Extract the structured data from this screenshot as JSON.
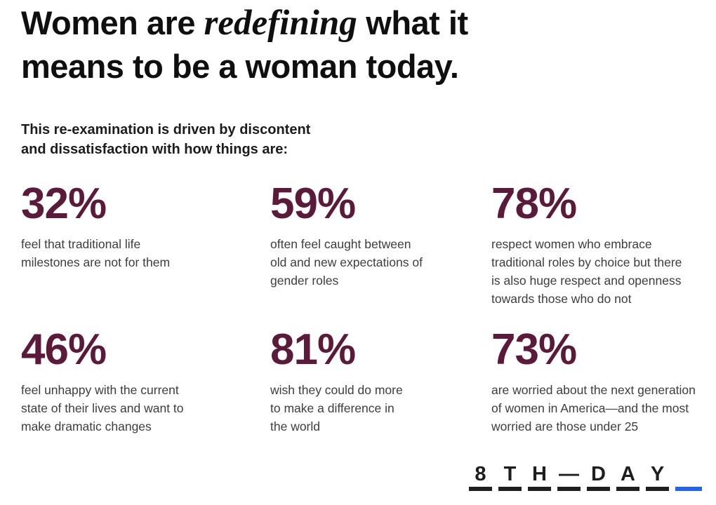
{
  "header": {
    "title": {
      "line1_pre": "Women are ",
      "line1_italic": "redefining",
      "line1_post": " what it",
      "line2": "means to be a woman today."
    },
    "subtitle": "This re-examination is driven by discontent\nand dissatisfaction with how things are:"
  },
  "stats": [
    {
      "value": "32%",
      "description": "feel that traditional life\nmilestones are not for them"
    },
    {
      "value": "59%",
      "description": "often feel caught between\nold and new expectations of\ngender roles"
    },
    {
      "value": "78%",
      "description": "respect women who embrace\ntraditional roles by choice but there\nis also huge respect and openness\ntowards those who do not"
    },
    {
      "value": "46%",
      "description": "feel unhappy with the current\nstate of their lives and want to\nmake dramatic changes"
    },
    {
      "value": "81%",
      "description": "wish they could do more\nto make a difference in\nthe world"
    },
    {
      "value": "73%",
      "description": "are worried about the next generation\nof women in America—and the most\nworried are those under 25"
    }
  ],
  "logo": {
    "name": "8TH—DAY",
    "letters": [
      "8",
      "T",
      "H",
      "—",
      "D",
      "A",
      "Y"
    ]
  },
  "colors": {
    "stat_value": "#5C1A3B",
    "heading": "#0F0F0F",
    "body_text": "#3D3D3D",
    "logo_text": "#1E1E1E",
    "logo_accent": "#2563EB"
  }
}
